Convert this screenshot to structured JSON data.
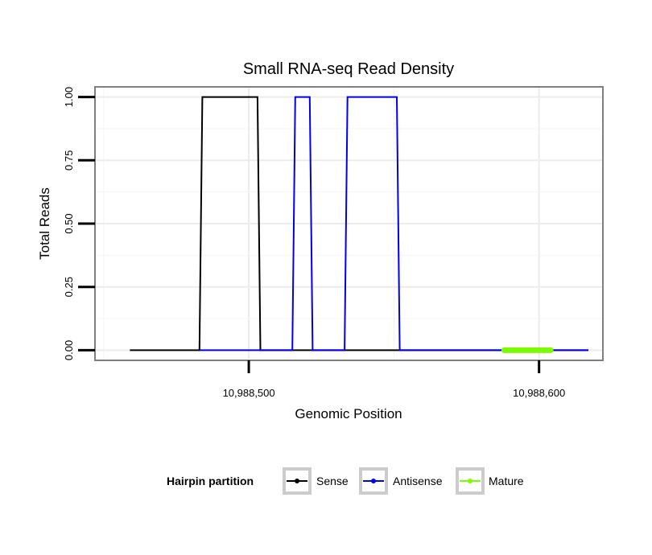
{
  "chart_data": {
    "type": "line",
    "title": "Small RNA-seq Read Density",
    "xlabel": "Genomic Position",
    "ylabel": "Total Reads",
    "xlim": [
      10988447,
      10988622
    ],
    "ylim": [
      -0.04,
      1.04
    ],
    "x_ticks": [
      10988500,
      10988600
    ],
    "x_tick_labels": [
      "10,988,500",
      "10,988,600"
    ],
    "y_ticks": [
      0,
      0.25,
      0.5,
      0.75,
      1.0
    ],
    "y_tick_labels": [
      "0.00",
      "0.25",
      "0.50",
      "0.75",
      "1.00"
    ],
    "grid": true,
    "legend": {
      "title": "Hairpin partition",
      "position": "bottom",
      "entries": [
        {
          "name": "Sense",
          "color": "#000000"
        },
        {
          "name": "Antisense",
          "color": "#0000ee"
        },
        {
          "name": "Mature",
          "color": "#7cfc00"
        }
      ]
    },
    "series": [
      {
        "name": "Sense",
        "color": "#000000",
        "x": [
          10988459,
          10988483,
          10988484,
          10988503,
          10988504,
          10988520,
          10988521,
          10988538,
          10988539,
          10988559,
          10988560,
          10988617
        ],
        "y": [
          0,
          0,
          1,
          1,
          0,
          0,
          0,
          0,
          0,
          0,
          0,
          0
        ]
      },
      {
        "name": "Antisense",
        "color": "#0000ee",
        "x": [
          10988483,
          10988503,
          10988504,
          10988515,
          10988516,
          10988521,
          10988522,
          10988533,
          10988534,
          10988551,
          10988552,
          10988569,
          10988570,
          10988617
        ],
        "y": [
          0,
          0,
          0,
          0,
          1,
          1,
          0,
          0,
          1,
          1,
          0,
          0,
          0,
          0
        ]
      },
      {
        "name": "Mature",
        "color": "#7cfc00",
        "x": [
          10988588,
          10988604
        ],
        "y": [
          0,
          0
        ]
      }
    ]
  }
}
